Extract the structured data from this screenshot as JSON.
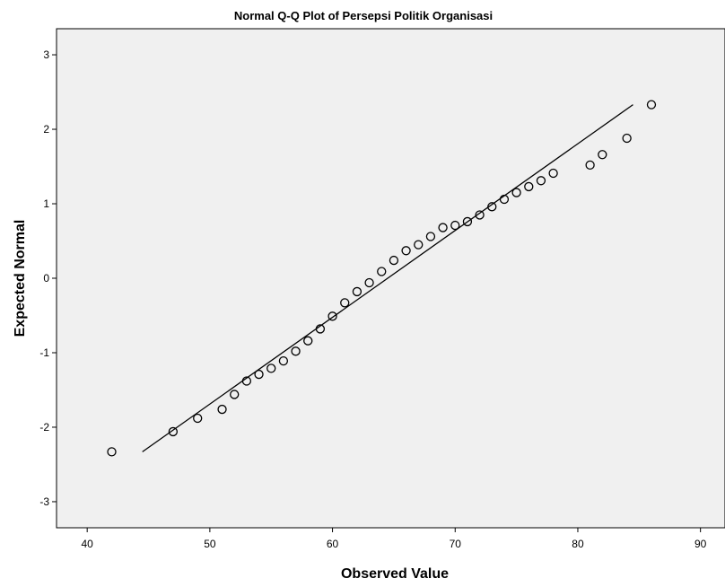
{
  "chart_data": {
    "type": "scatter",
    "title": "Normal Q-Q Plot of Persepsi Politik Organisasi",
    "xlabel": "Observed Value",
    "ylabel": "Expected Normal",
    "xlim": [
      37.5,
      92
    ],
    "ylim": [
      -3.35,
      3.35
    ],
    "xticks": [
      40,
      50,
      60,
      70,
      80,
      90
    ],
    "yticks": [
      -3,
      -2,
      -1,
      0,
      1,
      2,
      3
    ],
    "grid": false,
    "plot_background": "#f0f0f0",
    "marker_color": "#000000",
    "points": [
      {
        "x": 42,
        "y": -2.33
      },
      {
        "x": 47,
        "y": -2.06
      },
      {
        "x": 49,
        "y": -1.88
      },
      {
        "x": 51,
        "y": -1.76
      },
      {
        "x": 52,
        "y": -1.56
      },
      {
        "x": 53,
        "y": -1.38
      },
      {
        "x": 54,
        "y": -1.29
      },
      {
        "x": 55,
        "y": -1.21
      },
      {
        "x": 56,
        "y": -1.11
      },
      {
        "x": 57,
        "y": -0.98
      },
      {
        "x": 58,
        "y": -0.84
      },
      {
        "x": 59,
        "y": -0.68
      },
      {
        "x": 60,
        "y": -0.51
      },
      {
        "x": 61,
        "y": -0.33
      },
      {
        "x": 62,
        "y": -0.18
      },
      {
        "x": 63,
        "y": -0.06
      },
      {
        "x": 64,
        "y": 0.09
      },
      {
        "x": 65,
        "y": 0.24
      },
      {
        "x": 66,
        "y": 0.37
      },
      {
        "x": 67,
        "y": 0.45
      },
      {
        "x": 68,
        "y": 0.56
      },
      {
        "x": 69,
        "y": 0.68
      },
      {
        "x": 70,
        "y": 0.71
      },
      {
        "x": 71,
        "y": 0.76
      },
      {
        "x": 72,
        "y": 0.85
      },
      {
        "x": 73,
        "y": 0.96
      },
      {
        "x": 74,
        "y": 1.06
      },
      {
        "x": 75,
        "y": 1.15
      },
      {
        "x": 76,
        "y": 1.23
      },
      {
        "x": 77,
        "y": 1.31
      },
      {
        "x": 78,
        "y": 1.41
      },
      {
        "x": 81,
        "y": 1.52
      },
      {
        "x": 82,
        "y": 1.66
      },
      {
        "x": 84,
        "y": 1.88
      },
      {
        "x": 86,
        "y": 2.33
      }
    ],
    "reference_line": {
      "x1": 44.5,
      "y1": -2.33,
      "x2": 84.5,
      "y2": 2.33
    }
  }
}
